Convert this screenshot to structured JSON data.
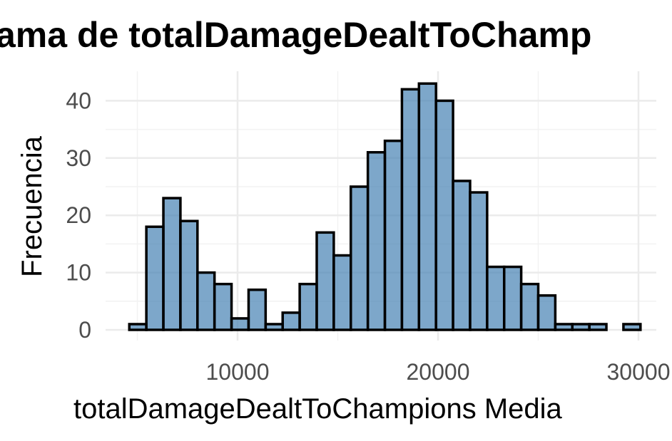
{
  "chart_data": {
    "type": "bar",
    "title": "ama de totalDamageDealtToChamp",
    "xlabel": "totalDamageDealtToChampions Media",
    "ylabel": "Frecuencia",
    "xlim": [
      4000,
      31000
    ],
    "ylim": [
      0,
      45
    ],
    "x_ticks": [
      10000,
      20000,
      30000
    ],
    "x_tick_labels": [
      "10000",
      "20000",
      "30000"
    ],
    "y_ticks": [
      0,
      10,
      20,
      30,
      40
    ],
    "y_tick_labels": [
      "0",
      "10",
      "20",
      "30",
      "40"
    ],
    "bin_width": 850,
    "bin_start": 4600,
    "values": [
      1,
      18,
      23,
      19,
      10,
      8,
      2,
      7,
      1,
      3,
      8,
      17,
      13,
      25,
      31,
      33,
      42,
      43,
      40,
      26,
      24,
      11,
      11,
      8,
      6,
      1,
      1,
      1,
      0,
      1
    ],
    "grid": true,
    "bar_fill": "#4682b4",
    "bar_stroke": "#000000"
  }
}
